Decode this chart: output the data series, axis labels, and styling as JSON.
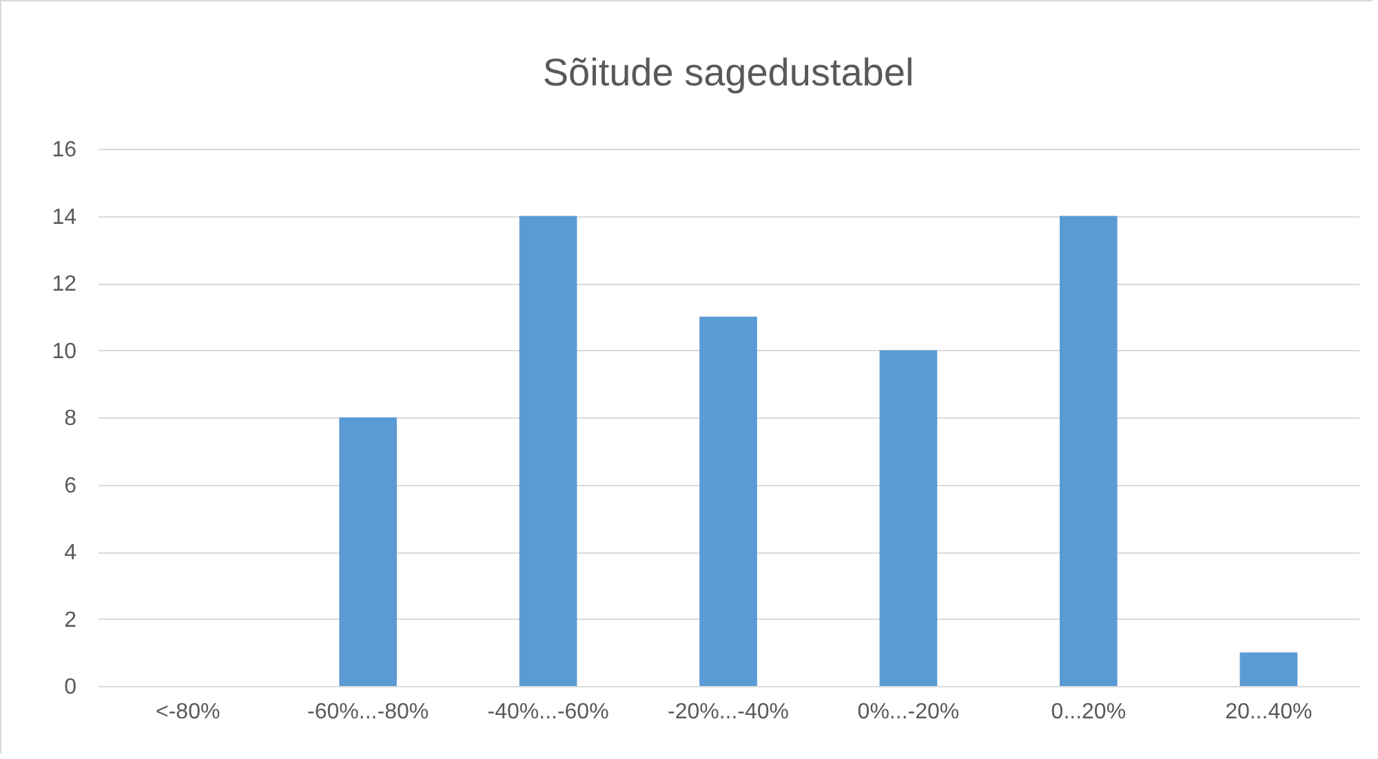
{
  "chart_data": {
    "type": "bar",
    "title": "Sõitude sagedustabel",
    "categories": [
      "<-80%",
      "-60%...-80%",
      "-40%...-60%",
      "-20%...-40%",
      "0%...-20%",
      "0...20%",
      "20...40%"
    ],
    "values": [
      0,
      8,
      14,
      11,
      10,
      14,
      1
    ],
    "color": "#5b9bd5",
    "ylim": [
      0,
      16
    ],
    "yticks": [
      0,
      2,
      4,
      6,
      8,
      10,
      12,
      14,
      16
    ],
    "grid": "y"
  }
}
